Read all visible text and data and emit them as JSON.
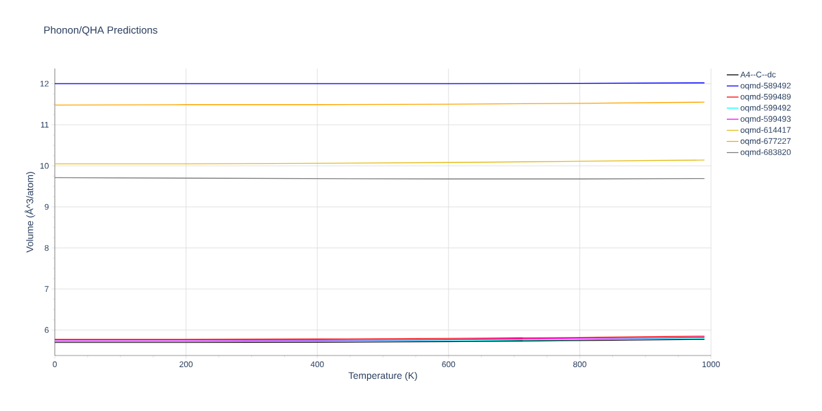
{
  "chart_data": {
    "type": "line",
    "title": "Phonon/QHA Predictions",
    "xlabel": "Temperature (K)",
    "ylabel": "Volume (Å^3/atom)",
    "x": [
      0,
      200,
      400,
      600,
      800,
      990
    ],
    "xlim": [
      0,
      1000
    ],
    "xticks": [
      0,
      200,
      400,
      600,
      800,
      1000
    ],
    "ylim": [
      5.38,
      12.37
    ],
    "yticks": [
      6,
      7,
      8,
      9,
      10,
      11,
      12
    ],
    "grid": true,
    "legend": "top right",
    "marker": "none",
    "line_style": "solid",
    "series": [
      {
        "name": "A4--C--dc",
        "color": "#000000",
        "values": [
          5.7,
          5.7,
          5.705,
          5.72,
          5.745,
          5.775
        ]
      },
      {
        "name": "oqmd-589492",
        "color": "#0000ff",
        "values": [
          12.0,
          12.0,
          12.0,
          12.0,
          12.01,
          12.02
        ]
      },
      {
        "name": "oqmd-599489",
        "color": "#ff0000",
        "values": [
          5.775,
          5.775,
          5.78,
          5.795,
          5.82,
          5.85
        ]
      },
      {
        "name": "oqmd-599492",
        "color": "#00ffff",
        "values": [
          5.725,
          5.725,
          5.73,
          5.745,
          5.77,
          5.8
        ]
      },
      {
        "name": "oqmd-599493",
        "color": "#ff00ff",
        "values": [
          5.75,
          5.75,
          5.755,
          5.77,
          5.795,
          5.825
        ]
      },
      {
        "name": "oqmd-614417",
        "color": "#e6be1e",
        "values": [
          10.05,
          10.05,
          10.06,
          10.08,
          10.11,
          10.14
        ]
      },
      {
        "name": "oqmd-677227",
        "color": "#ffa500",
        "values": [
          11.48,
          11.49,
          11.49,
          11.5,
          11.52,
          11.55
        ]
      },
      {
        "name": "oqmd-683820",
        "color": "#808080",
        "values": [
          9.71,
          9.7,
          9.69,
          9.68,
          9.68,
          9.69
        ]
      }
    ]
  }
}
